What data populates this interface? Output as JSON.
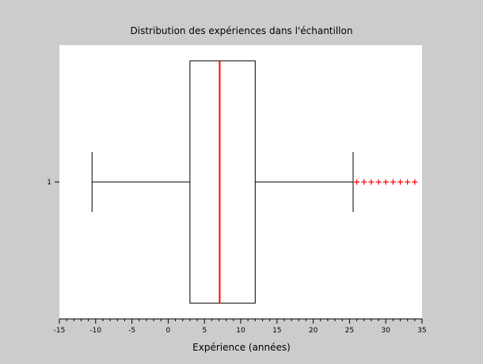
{
  "chart_data": {
    "type": "boxplot",
    "title": "Distribution des expériences dans l'échantillon",
    "xlabel": "Expérience (années)",
    "ylabel": "",
    "xlim": [
      -15,
      35
    ],
    "xticks": [
      -15,
      -10,
      -5,
      0,
      5,
      10,
      15,
      20,
      25,
      30,
      35
    ],
    "orientation": "horizontal",
    "grid": false,
    "series": [
      {
        "label": "1",
        "whisker_low": -10.5,
        "q1": 3,
        "median": 7.1,
        "q3": 12,
        "whisker_high": 25.5,
        "outliers": [
          26,
          27,
          28,
          29,
          30,
          31,
          32,
          33,
          34
        ]
      }
    ],
    "colors": {
      "background": "#cccccc",
      "plot_area": "#ffffff",
      "box": "#000000",
      "median": "#ff0000",
      "outlier": "#ff0000"
    }
  }
}
